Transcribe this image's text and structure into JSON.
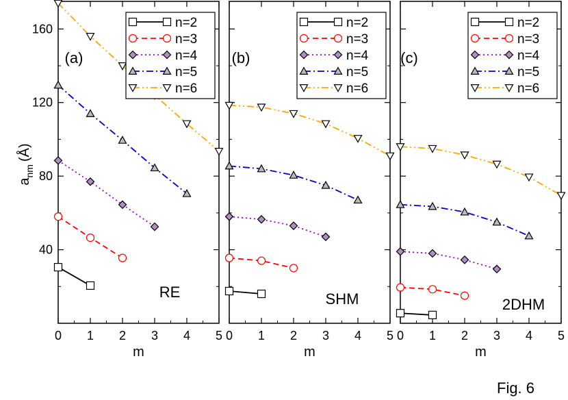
{
  "figure_label": "Fig. 6",
  "y_axis_label": {
    "main": "a",
    "sub": "nm",
    "unit": "(Å)"
  },
  "series_styles": [
    {
      "name": "n=2",
      "color": "#000000",
      "dash": "none",
      "marker": "square",
      "fill": "none"
    },
    {
      "name": "n=3",
      "color": "#ff0000",
      "dash": "8,5",
      "marker": "circle",
      "fill": "none"
    },
    {
      "name": "n=4",
      "color": "#9400d3",
      "dash": "2,4",
      "marker": "diamond",
      "fill": "#b08fc0"
    },
    {
      "name": "n=5",
      "color": "#0000cc",
      "dash": "10,4,2,4",
      "marker": "triangle-up",
      "fill": "#bbbbbb"
    },
    {
      "name": "n=6",
      "color": "#ffa500",
      "dash": "10,4,2,4,2,4",
      "marker": "triangle-down",
      "fill": "none"
    }
  ],
  "chart_data": [
    {
      "type": "line",
      "panel": "(a)",
      "model": "RE",
      "xlabel": "m",
      "ylabel": "a_nm (Å)",
      "xlim": [
        0,
        5
      ],
      "ylim": [
        0,
        175
      ],
      "x_ticks": [
        0,
        1,
        2,
        3,
        4,
        5
      ],
      "y_ticks": [
        40,
        80,
        120,
        160
      ],
      "legend_position": "top-right",
      "series": [
        {
          "name": "n=2",
          "x": [
            0,
            1
          ],
          "values": [
            30.5,
            20.5
          ]
        },
        {
          "name": "n=3",
          "x": [
            0,
            1,
            2
          ],
          "values": [
            58.0,
            46.5,
            35.5
          ]
        },
        {
          "name": "n=4",
          "x": [
            0,
            1,
            2,
            3
          ],
          "values": [
            88.5,
            77.0,
            64.5,
            52.5
          ]
        },
        {
          "name": "n=5",
          "x": [
            0,
            1,
            2,
            3,
            4
          ],
          "values": [
            129.5,
            114.0,
            99.5,
            84.5,
            70.5
          ]
        },
        {
          "name": "n=6",
          "x": [
            0,
            1,
            2,
            3,
            4,
            5
          ],
          "values": [
            174.0,
            156.0,
            140.0,
            124.0,
            108.5,
            93.5
          ]
        }
      ]
    },
    {
      "type": "line",
      "panel": "(b)",
      "model": "SHM",
      "xlabel": "m",
      "ylabel": "a_nm (Å)",
      "xlim": [
        0,
        5
      ],
      "ylim": [
        0,
        175
      ],
      "x_ticks": [
        0,
        1,
        2,
        3,
        4,
        5
      ],
      "y_ticks": [
        40,
        80,
        120,
        160
      ],
      "legend_position": "top-right",
      "series": [
        {
          "name": "n=2",
          "x": [
            0,
            1
          ],
          "values": [
            17.5,
            16.0
          ]
        },
        {
          "name": "n=3",
          "x": [
            0,
            1,
            2
          ],
          "values": [
            35.5,
            34.0,
            30.0
          ]
        },
        {
          "name": "n=4",
          "x": [
            0,
            1,
            2,
            3
          ],
          "values": [
            58.0,
            56.5,
            53.0,
            47.0
          ]
        },
        {
          "name": "n=5",
          "x": [
            0,
            1,
            2,
            3,
            4
          ],
          "values": [
            85.5,
            84.0,
            80.5,
            75.0,
            67.0
          ]
        },
        {
          "name": "n=6",
          "x": [
            0,
            1,
            2,
            3,
            4,
            5
          ],
          "values": [
            118.5,
            117.5,
            114.0,
            108.5,
            100.5,
            91.0
          ]
        }
      ]
    },
    {
      "type": "line",
      "panel": "(c)",
      "model": "2DHM",
      "xlabel": "m",
      "ylabel": "a_nm (Å)",
      "xlim": [
        0,
        5
      ],
      "ylim": [
        0,
        175
      ],
      "x_ticks": [
        0,
        1,
        2,
        3,
        4,
        5
      ],
      "y_ticks": [
        40,
        80,
        120,
        160
      ],
      "legend_position": "top-right",
      "series": [
        {
          "name": "n=2",
          "x": [
            0,
            1
          ],
          "values": [
            5.5,
            4.5
          ]
        },
        {
          "name": "n=3",
          "x": [
            0,
            1,
            2
          ],
          "values": [
            19.5,
            18.5,
            15.0
          ]
        },
        {
          "name": "n=4",
          "x": [
            0,
            1,
            2,
            3
          ],
          "values": [
            39.0,
            38.0,
            34.5,
            29.5
          ]
        },
        {
          "name": "n=5",
          "x": [
            0,
            1,
            2,
            3,
            4
          ],
          "values": [
            64.5,
            63.5,
            60.5,
            55.0,
            47.5
          ]
        },
        {
          "name": "n=6",
          "x": [
            0,
            1,
            2,
            3,
            4,
            5
          ],
          "values": [
            96.0,
            95.0,
            91.5,
            86.5,
            79.5,
            69.5
          ]
        }
      ]
    }
  ]
}
